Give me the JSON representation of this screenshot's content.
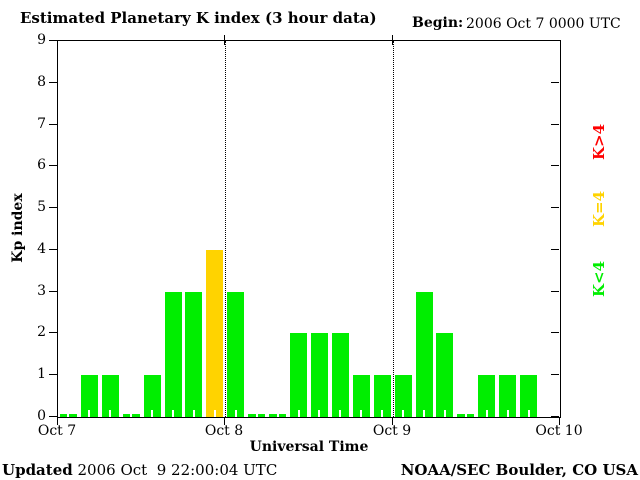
{
  "title": "Estimated Planetary K index (3 hour data)",
  "begin": {
    "label": "Begin:",
    "value": "2006 Oct 7 0000 UTC"
  },
  "footer": {
    "updated_label": "Updated",
    "updated_value": " 2006 Oct  9 22:00:04 UTC",
    "credit": "NOAA/SEC Boulder, CO USA"
  },
  "legend": [
    {
      "label": "K>4",
      "color": "#ff0000"
    },
    {
      "label": "K=4",
      "color": "#ffd300"
    },
    {
      "label": "K<4",
      "color": "#00ee00"
    }
  ],
  "colors": {
    "bar_low": "#00ee00",
    "bar_mid": "#ffd300",
    "bar_high": "#ff0000",
    "axis": "#000000",
    "background": "#ffffff"
  },
  "chart_data": {
    "type": "bar",
    "title": "Estimated Planetary K index (3 hour data)",
    "xlabel": "Universal Time",
    "ylabel": "Kp index",
    "ylim": [
      0,
      9
    ],
    "yticks": [
      0,
      1,
      2,
      3,
      4,
      5,
      6,
      7,
      8,
      9
    ],
    "day_labels": [
      "Oct 7",
      "Oct 8",
      "Oct 9",
      "Oct 10"
    ],
    "bin_hours": 3,
    "bins_per_day": 8,
    "grid": "dotted vertical lines at day boundaries",
    "legend_position": "right, rotated",
    "color_rule": {
      "K<4": "#00ee00",
      "K=4": "#ffd300",
      "K>4": "#ff0000"
    },
    "series": [
      {
        "name": "Kp (Oct 7)",
        "values": [
          0,
          1,
          1,
          0,
          1,
          3,
          3,
          4
        ]
      },
      {
        "name": "Kp (Oct 8)",
        "values": [
          3,
          0,
          0,
          2,
          2,
          2,
          1,
          1
        ]
      },
      {
        "name": "Kp (Oct 9)",
        "values": [
          1,
          3,
          2,
          0,
          1,
          1,
          1,
          null
        ]
      }
    ],
    "values_flat": [
      0,
      1,
      1,
      0,
      1,
      3,
      3,
      4,
      3,
      0,
      0,
      2,
      2,
      2,
      1,
      1,
      1,
      3,
      2,
      0,
      1,
      1,
      1,
      null
    ]
  }
}
